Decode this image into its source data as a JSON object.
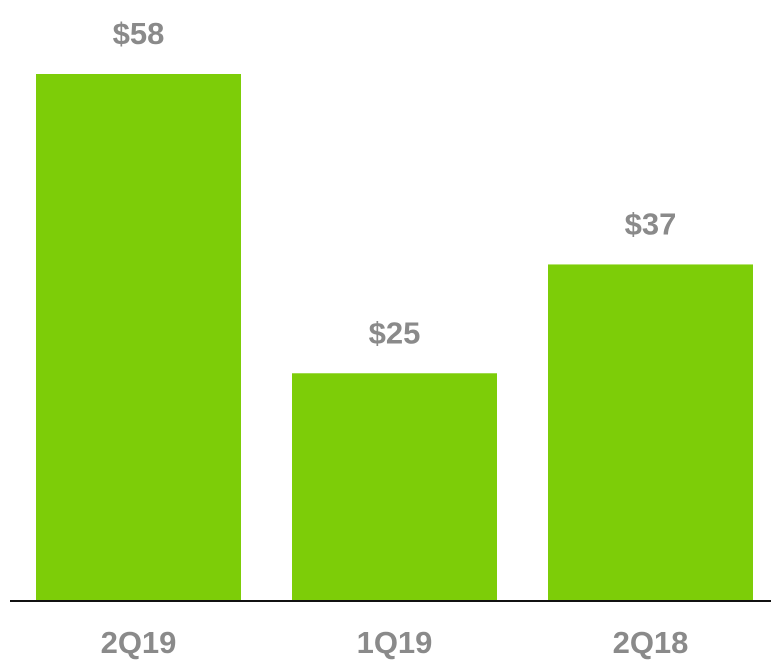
{
  "chart_data": {
    "type": "bar",
    "categories": [
      "2Q19",
      "1Q19",
      "2Q18"
    ],
    "values": [
      58,
      25,
      37
    ],
    "value_labels": [
      "$58",
      "$25",
      "$37"
    ],
    "color": "#7dcd08"
  }
}
